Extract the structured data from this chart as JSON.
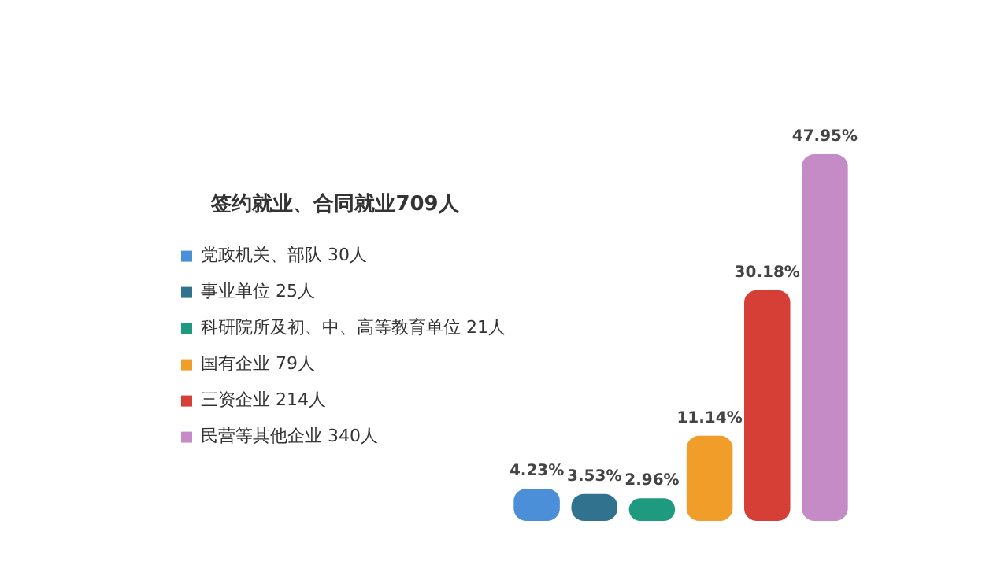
{
  "chart_data": {
    "type": "bar",
    "legend_title": "签约就业、合同就业709人",
    "legend": "left",
    "tick_labels": false,
    "stacked": true,
    "categories": [
      null,
      null,
      null,
      null,
      null,
      null
    ],
    "series": [
      {
        "name": "党政机关、部队 30人",
        "color": "#4a8fd8",
        "values": [
          4.23,
          null,
          null,
          null,
          null,
          null
        ],
        "value_labels": [
          "4.23%",
          null,
          null,
          null,
          null,
          null
        ]
      },
      {
        "name": "事业单位 25人",
        "color": "#31738f",
        "values": [
          null,
          3.53,
          null,
          null,
          null,
          null
        ],
        "value_labels": [
          null,
          "3.53%",
          null,
          null,
          null,
          null
        ]
      },
      {
        "name": "科研院所及初、中、高等教育单位 21人",
        "color": "#1e9b7e",
        "values": [
          null,
          null,
          2.96,
          null,
          null,
          null
        ],
        "value_labels": [
          null,
          null,
          "2.96%",
          null,
          null,
          null
        ]
      },
      {
        "name": "国有企业 79人",
        "color": "#f09d2a",
        "values": [
          null,
          null,
          null,
          11.14,
          null,
          null
        ],
        "value_labels": [
          null,
          null,
          null,
          "11.14%",
          null,
          null
        ]
      },
      {
        "name": "三资企业 214人",
        "color": "#d53f36",
        "values": [
          null,
          null,
          null,
          null,
          30.18,
          null
        ],
        "value_labels": [
          null,
          null,
          null,
          null,
          "30.18%",
          null
        ]
      },
      {
        "name": "民营等其他企业 340人",
        "color": "#c48bc6",
        "values": [
          null,
          null,
          null,
          null,
          null,
          47.95
        ],
        "value_labels": [
          null,
          null,
          null,
          null,
          null,
          "47.95%"
        ]
      }
    ]
  }
}
